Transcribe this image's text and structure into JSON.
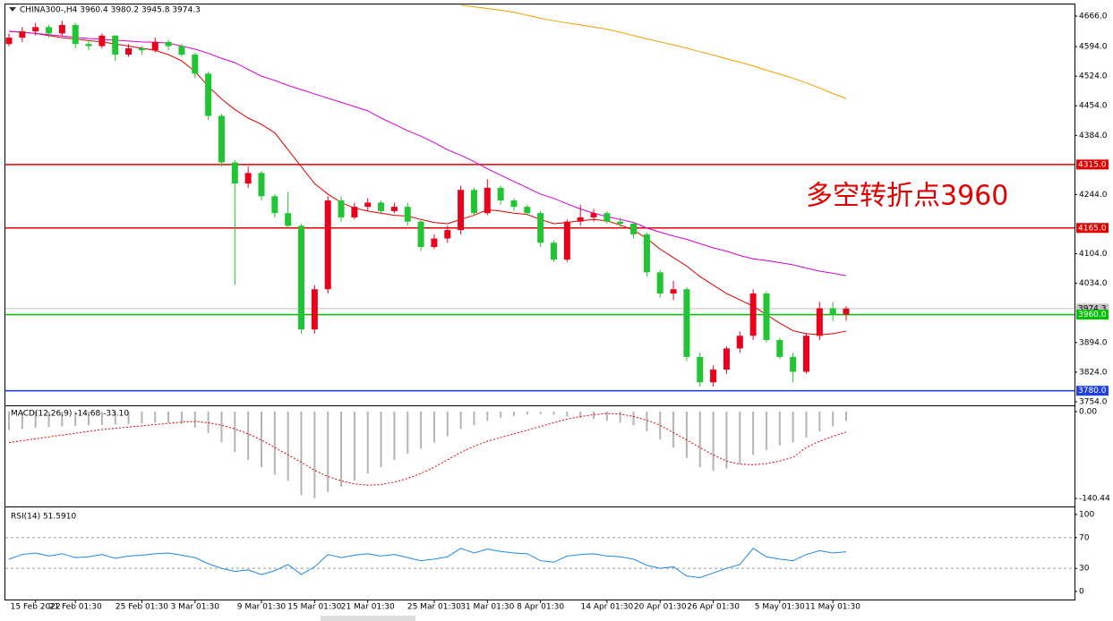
{
  "chart_data": [
    {
      "type": "candlestick",
      "title": "CHINA300-,H4  3960.4 3980.2 3945.8 3974.3",
      "annotation": "多空转折点3960",
      "categories": [
        null,
        null,
        "15 Feb 2022",
        null,
        null,
        "21 Feb 01:30",
        null,
        null,
        null,
        null,
        "25 Feb 01:30",
        null,
        null,
        null,
        "3 Mar 01:30",
        null,
        null,
        null,
        null,
        "9 Mar 01:30",
        null,
        null,
        null,
        "15 Mar 01:30",
        null,
        null,
        null,
        "21 Mar 01:30",
        null,
        null,
        null,
        null,
        "25 Mar 01:30",
        null,
        null,
        null,
        "31 Mar 01:30",
        null,
        null,
        null,
        "8 Apr 01:30",
        null,
        null,
        null,
        null,
        "14 Apr 01:30",
        null,
        null,
        null,
        "20 Apr 01:30",
        null,
        null,
        null,
        "26 Apr 01:30",
        null,
        null,
        null,
        null,
        "5 May 01:30",
        null,
        null,
        null,
        "11 May 01:30",
        null
      ],
      "open": [
        4600,
        4615,
        4630,
        4640,
        4625,
        4645,
        4600,
        4595,
        4620,
        4575,
        4590,
        4585,
        4605,
        4595,
        4575,
        4530,
        4430,
        4320,
        4270,
        4295,
        4240,
        4200,
        4170,
        3925,
        4020,
        4230,
        4190,
        4215,
        4225,
        4205,
        4215,
        4180,
        4120,
        4140,
        4160,
        4255,
        4200,
        4260,
        4230,
        4215,
        4200,
        4130,
        4090,
        4180,
        4190,
        4200,
        4180,
        4175,
        4150,
        4060,
        4010,
        4020,
        3860,
        3800,
        3830,
        3880,
        3910,
        4010,
        3900,
        3860,
        3825,
        3910,
        3975,
        3960.4
      ],
      "high": [
        4625,
        4640,
        4650,
        4645,
        4655,
        4650,
        4610,
        4625,
        4620,
        4600,
        4595,
        4615,
        4610,
        4600,
        4580,
        4535,
        4435,
        4325,
        4310,
        4300,
        4245,
        4250,
        4175,
        4030,
        4240,
        4240,
        4225,
        4235,
        4230,
        4225,
        4225,
        4185,
        4150,
        4170,
        4265,
        4260,
        4280,
        4265,
        4235,
        4220,
        4205,
        4135,
        4185,
        4220,
        4210,
        4205,
        4190,
        4180,
        4155,
        4065,
        4040,
        4025,
        3870,
        3840,
        3885,
        3920,
        4020,
        4015,
        3905,
        3870,
        3915,
        3990,
        3990,
        3980.2
      ],
      "low": [
        4595,
        4605,
        4620,
        4615,
        4620,
        4590,
        4585,
        4590,
        4560,
        4570,
        4575,
        4580,
        4585,
        4570,
        4520,
        4420,
        4310,
        4030,
        4260,
        4230,
        4190,
        4165,
        3915,
        3915,
        4010,
        4180,
        4185,
        4205,
        4200,
        4200,
        4170,
        4110,
        4115,
        4130,
        4150,
        4195,
        4195,
        4220,
        4205,
        4195,
        4120,
        4085,
        4085,
        4170,
        4180,
        4175,
        4165,
        4140,
        4050,
        4000,
        3995,
        3850,
        3790,
        3790,
        3820,
        3870,
        3900,
        3895,
        3855,
        3800,
        3820,
        3900,
        3945,
        3945.8
      ],
      "close": [
        4615,
        4630,
        4640,
        4625,
        4645,
        4600,
        4595,
        4620,
        4575,
        4590,
        4585,
        4605,
        4595,
        4575,
        4530,
        4430,
        4320,
        4270,
        4295,
        4240,
        4200,
        4170,
        3925,
        4020,
        4230,
        4190,
        4215,
        4225,
        4205,
        4215,
        4180,
        4120,
        4140,
        4160,
        4255,
        4200,
        4260,
        4230,
        4215,
        4200,
        4130,
        4090,
        4180,
        4190,
        4200,
        4180,
        4175,
        4150,
        4060,
        4010,
        4020,
        3860,
        3800,
        3830,
        3880,
        3910,
        4010,
        3900,
        3860,
        3825,
        3910,
        3975,
        3960,
        3974.3
      ],
      "up_color": "#e8001c",
      "down_color": "#21c432",
      "moving_averages": [
        {
          "color": "#e00000",
          "values": [
            4630,
            4628,
            4625,
            4620,
            4615,
            4612,
            4608,
            4605,
            4600,
            4595,
            4590,
            4585,
            4575,
            4560,
            4535,
            4500,
            4470,
            4445,
            4425,
            4410,
            4390,
            4350,
            4310,
            4270,
            4245,
            4225,
            4212,
            4205,
            4200,
            4195,
            4193,
            4185,
            4178,
            4175,
            4185,
            4195,
            4208,
            4205,
            4200,
            4197,
            4185,
            4175,
            4178,
            4182,
            4185,
            4182,
            4172,
            4160,
            4140,
            4115,
            4095,
            4075,
            4050,
            4030,
            4010,
            3995,
            3980,
            3960,
            3940,
            3922,
            3915,
            3912,
            3915,
            3921
          ]
        },
        {
          "color": "#d400d4",
          "values": [
            4630,
            4628,
            4625,
            4622,
            4619,
            4616,
            4613,
            4611,
            4609,
            4607,
            4605,
            4604,
            4602,
            4595,
            4588,
            4578,
            4566,
            4556,
            4540,
            4524,
            4514,
            4502,
            4492,
            4482,
            4472,
            4462,
            4452,
            4442,
            4425,
            4410,
            4395,
            4382,
            4367,
            4350,
            4337,
            4322,
            4305,
            4290,
            4275,
            4260,
            4245,
            4235,
            4222,
            4210,
            4200,
            4192,
            4185,
            4178,
            4165,
            4155,
            4146,
            4138,
            4128,
            4118,
            4110,
            4100,
            4092,
            4088,
            4083,
            4078,
            4070,
            4063,
            4058,
            4052
          ]
        },
        {
          "color": "#f0a000",
          "values": [
            null,
            null,
            null,
            null,
            null,
            null,
            null,
            null,
            null,
            null,
            null,
            null,
            null,
            null,
            null,
            null,
            null,
            null,
            null,
            null,
            null,
            null,
            null,
            null,
            null,
            null,
            null,
            null,
            null,
            null,
            null,
            null,
            null,
            null,
            4692,
            4688,
            4684,
            4680,
            4675,
            4668,
            4661,
            4655,
            4650,
            4645,
            4640,
            4635,
            4628,
            4620,
            4612,
            4605,
            4598,
            4590,
            4582,
            4574,
            4565,
            4557,
            4548,
            4538,
            4529,
            4519,
            4508,
            4496,
            4483,
            4471
          ]
        }
      ],
      "levels": [
        {
          "value": 4315,
          "label": "4315.0",
          "color": "#e00000"
        },
        {
          "value": 4165,
          "label": "4165.0",
          "color": "#e00000"
        },
        {
          "value": 3974.3,
          "label": "3974.3",
          "color": "#c0c0c0"
        },
        {
          "value": 3960,
          "label": "3960.0",
          "color": "#00c000"
        },
        {
          "value": 3780,
          "label": "3780.0",
          "color": "#2040e0"
        }
      ],
      "ylim": [
        3747.6,
        4693.5
      ],
      "yticks": [
        {
          "value": 4666,
          "label": "4666.0"
        },
        {
          "value": 4594,
          "label": "4594.0"
        },
        {
          "value": 4524,
          "label": "4524.0"
        },
        {
          "value": 4454,
          "label": "4454.0"
        },
        {
          "value": 4384,
          "label": "4384.0"
        },
        {
          "value": 4244,
          "label": "4244.0"
        },
        {
          "value": 4104,
          "label": "4104.0"
        },
        {
          "value": 4034,
          "label": "4034.0"
        },
        {
          "value": 3894,
          "label": "3894.0"
        },
        {
          "value": 3824,
          "label": "3824.0"
        },
        {
          "value": 3754,
          "label": "3754.0"
        }
      ]
    },
    {
      "type": "macd",
      "label": "MACD(12,26,9) -14.68 -33.10",
      "histogram": [
        -30,
        -28,
        -26,
        -25,
        -24,
        -23,
        -22,
        -22,
        -21,
        -20,
        -19,
        -18,
        -18,
        -20,
        -26,
        -35,
        -50,
        -65,
        -78,
        -90,
        -102,
        -112,
        -135,
        -140,
        -130,
        -122,
        -112,
        -100,
        -90,
        -78,
        -68,
        -60,
        -50,
        -40,
        -28,
        -22,
        -15,
        -10,
        -7,
        -5,
        -4,
        -5,
        -8,
        -10,
        -12,
        -15,
        -18,
        -22,
        -32,
        -45,
        -58,
        -75,
        -90,
        -96,
        -92,
        -85,
        -70,
        -62,
        -55,
        -50,
        -42,
        -32,
        -24,
        -14.68
      ],
      "signal": [
        -50,
        -47,
        -44,
        -41,
        -38,
        -35,
        -32,
        -29,
        -27,
        -25,
        -23,
        -21,
        -19,
        -17,
        -16,
        -18,
        -22,
        -28,
        -36,
        -46,
        -58,
        -70,
        -82,
        -95,
        -105,
        -112,
        -117,
        -119,
        -118,
        -114,
        -108,
        -100,
        -90,
        -78,
        -66,
        -56,
        -48,
        -42,
        -36,
        -30,
        -24,
        -18,
        -12,
        -8,
        -5,
        -3,
        -4,
        -8,
        -14,
        -22,
        -34,
        -46,
        -58,
        -70,
        -80,
        -85,
        -86,
        -84,
        -80,
        -74,
        -58,
        -48,
        -40,
        -33.1
      ],
      "hist_color": "#b4b4b4",
      "signal_color": "#e00000",
      "ylim": [
        -152,
        7.2
      ],
      "yticks": [
        {
          "value": 0,
          "label": "0.00"
        },
        {
          "value": -140.44,
          "label": "-140.44"
        }
      ]
    },
    {
      "type": "line",
      "label": "RSI(14) 51.5910",
      "values": [
        42,
        48,
        50,
        46,
        49,
        44,
        45,
        48,
        43,
        46,
        47,
        49,
        50,
        47,
        44,
        36,
        30,
        26,
        28,
        22,
        27,
        35,
        22,
        32,
        48,
        44,
        47,
        49,
        46,
        48,
        44,
        40,
        42,
        45,
        56,
        50,
        55,
        52,
        50,
        49,
        40,
        38,
        46,
        48,
        49,
        46,
        45,
        42,
        34,
        30,
        32,
        20,
        18,
        24,
        30,
        35,
        56,
        45,
        42,
        40,
        48,
        53,
        50,
        51.591
      ],
      "color": "#1e88e5",
      "levels": [
        70,
        30
      ],
      "ylim": [
        -10.5,
        108.1
      ],
      "yticks": [
        100,
        70,
        30,
        0
      ]
    }
  ]
}
